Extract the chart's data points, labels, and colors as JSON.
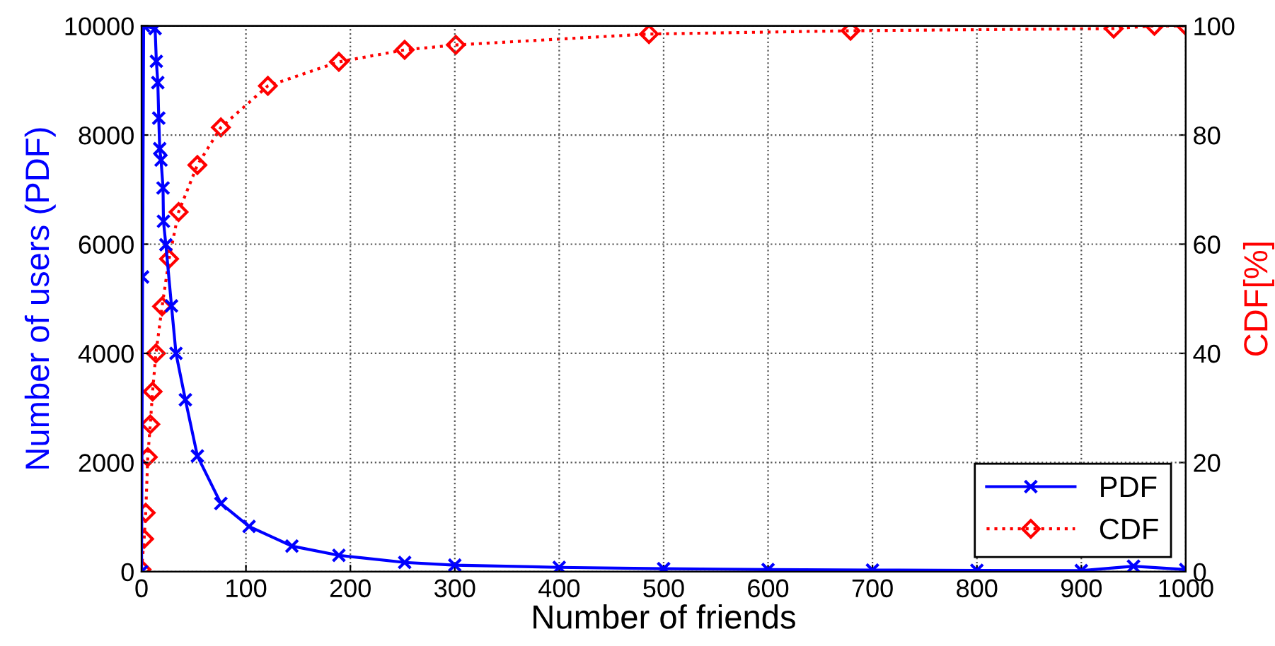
{
  "chart_data": {
    "type": "line",
    "xlabel": "Number of friends",
    "ylabel": "Number of users (PDF)",
    "y2label": "CDF[%]",
    "xlim": [
      0,
      1000
    ],
    "xticks": [
      0,
      100,
      200,
      300,
      400,
      500,
      600,
      700,
      800,
      900,
      1000
    ],
    "ylim": [
      0,
      10000
    ],
    "yticks": [
      0,
      2000,
      4000,
      6000,
      8000,
      10000
    ],
    "y2lim": [
      0,
      100
    ],
    "y2ticks": [
      0,
      20,
      40,
      60,
      80,
      100
    ],
    "grid": true,
    "legend": "bottom right",
    "series": [
      {
        "name": "PDF",
        "color": "#0000ff",
        "marker": "cross",
        "line_style": "solid",
        "x": [
          0,
          1,
          2,
          13,
          14.2,
          15.6,
          16.5,
          17.4,
          18.7,
          20.6,
          21,
          23.3,
          28.7,
          33,
          42,
          53.5,
          76,
          103,
          144,
          189,
          252,
          300,
          400,
          500,
          600,
          700,
          800,
          900,
          950,
          1000
        ],
        "values": [
          0,
          5400,
          10000,
          9950,
          9350,
          8960,
          8310,
          7750,
          7540,
          7030,
          6420,
          5990,
          4870,
          4000,
          3150,
          2120,
          1250,
          830,
          470,
          300,
          170,
          120,
          80,
          55,
          40,
          30,
          25,
          20,
          100,
          40
        ]
      },
      {
        "name": "CDF",
        "color": "#ff0000",
        "marker": "diamond",
        "line_style": "dotted",
        "axis": "y2",
        "x": [
          0,
          2.5,
          4,
          6,
          8.4,
          10.6,
          13.8,
          19.7,
          26.4,
          35.5,
          53.5,
          76,
          121,
          189,
          252,
          301,
          486,
          679,
          931,
          970,
          1000
        ],
        "values": [
          0.4,
          6,
          10.8,
          21,
          27,
          33,
          40,
          48.6,
          57.3,
          65.9,
          74.5,
          81.4,
          89,
          93.4,
          95.6,
          96.5,
          98.5,
          99.1,
          99.5,
          100,
          100
        ]
      }
    ]
  }
}
